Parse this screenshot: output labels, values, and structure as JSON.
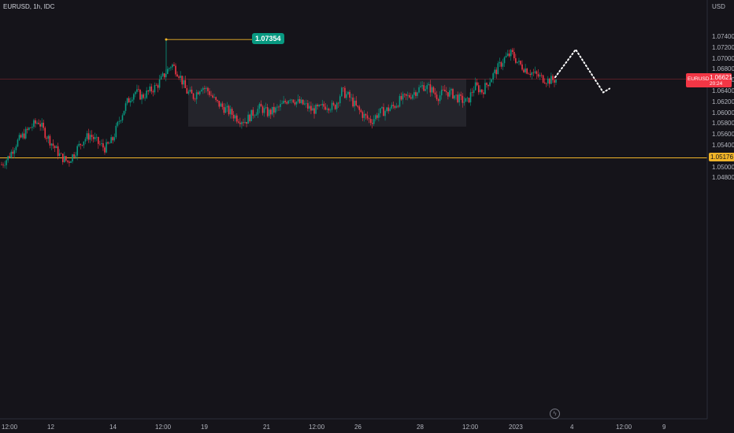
{
  "header": {
    "title": "EURUSD, 1h, IDC"
  },
  "price_axis": {
    "currency": "USD",
    "ticks": [
      "1.07400",
      "1.07200",
      "1.07000",
      "1.06800",
      "1.06600",
      "1.06400",
      "1.06200",
      "1.06000",
      "1.05800",
      "1.05600",
      "1.05400",
      "1.05200",
      "1.05000",
      "1.04800"
    ]
  },
  "time_axis": {
    "ticks": [
      "12:00",
      "12",
      "14",
      "12:00",
      "19",
      "21",
      "12:00",
      "26",
      "28",
      "12:00",
      "2023",
      "4",
      "12:00",
      "9"
    ]
  },
  "current_price": {
    "symbol": "EURUSD",
    "value": "1.06621",
    "countdown": "20:24",
    "color": "#f23645"
  },
  "support_level": {
    "value": "1.05176",
    "color": "#f0b429"
  },
  "high_marker": {
    "value": "1.07354",
    "color": "#089981"
  },
  "colors": {
    "up": "#089981",
    "down": "#f23645",
    "background": "#15141a",
    "range_box": "#2a2a31"
  },
  "icons": {
    "timezone": "lightning-icon"
  },
  "chart_data": {
    "type": "candlestick",
    "title": "EURUSD, 1h, IDC",
    "y_unit": "USD",
    "ylim": [
      1.0468,
      1.0752
    ],
    "current_price": 1.06621,
    "horizontal_levels": [
      1.05176,
      1.06621
    ],
    "annotated_high": 1.07354,
    "consolidation_range": [
      1.0575,
      1.0663
    ],
    "projection_path": [
      1.0666,
      1.0717,
      1.0638,
      1.0645
    ],
    "path_close": [
      1.0505,
      1.052,
      1.0545,
      1.056,
      1.0575,
      1.0585,
      1.056,
      1.054,
      1.052,
      1.051,
      1.053,
      1.055,
      1.056,
      1.0545,
      1.0535,
      1.055,
      1.059,
      1.062,
      1.064,
      1.063,
      1.064,
      1.065,
      1.067,
      1.069,
      1.0672,
      1.064,
      1.063,
      1.065,
      1.064,
      1.062,
      1.061,
      1.06,
      1.059,
      1.0585,
      1.06,
      1.061,
      1.06,
      1.0605,
      1.0615,
      1.063,
      1.062,
      1.0615,
      1.0605,
      1.0608,
      1.0615,
      1.061,
      1.064,
      1.063,
      1.061,
      1.0595,
      1.0585,
      1.06,
      1.0605,
      1.0612,
      1.0625,
      1.063,
      1.064,
      1.065,
      1.0645,
      1.063,
      1.064,
      1.0635,
      1.0625,
      1.062,
      1.065,
      1.064,
      1.066,
      1.068,
      1.07,
      1.071,
      1.069,
      1.068,
      1.0672,
      1.0665,
      1.066,
      1.0662
    ]
  }
}
